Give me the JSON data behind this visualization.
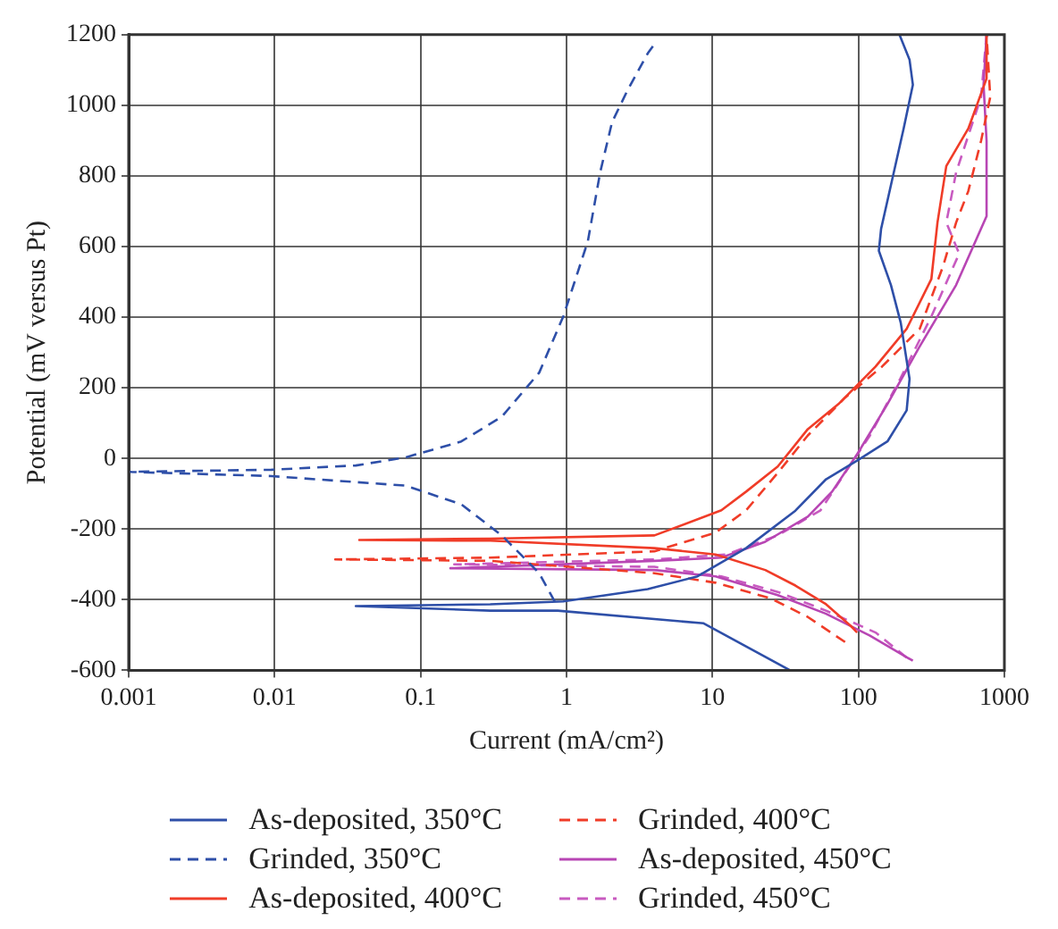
{
  "chart_data": {
    "type": "line",
    "xlabel": "Current (mA/cm²)",
    "ylabel": "Potential (mV versus Pt)",
    "log": "x",
    "xlim": [
      0.001,
      1000
    ],
    "xticks": [
      0.001,
      0.01,
      0.1,
      1,
      10,
      100,
      1000
    ],
    "ylim": [
      -600,
      1200
    ],
    "yticks": [
      -600,
      -400,
      -200,
      0,
      200,
      400,
      600,
      800,
      1000,
      1200
    ],
    "grid": true,
    "legend": "bottom",
    "marker": "none",
    "series": [
      {
        "name": "As-deposited, 350°C",
        "color": "#2e4fa8",
        "line_style": "solid",
        "x": [
          34,
          8.7,
          0.87,
          0.3,
          0.036,
          0.3,
          0.95,
          3.6,
          7.9,
          17,
          37,
          60,
          98,
          158,
          214,
          224,
          195,
          167,
          138,
          143,
          167,
          204,
          236,
          224,
          191
        ],
        "values": [
          -600,
          -467,
          -431,
          -431,
          -418,
          -413,
          -405,
          -370,
          -334,
          -254,
          -148,
          -59,
          -6,
          48,
          136,
          225,
          384,
          491,
          588,
          650,
          774,
          934,
          1058,
          1129,
          1200
        ]
      },
      {
        "name": "Grinded, 350°C",
        "color": "#2e4fa8",
        "line_style": "dashed",
        "x": [
          0.83,
          0.65,
          0.36,
          0.19,
          0.079,
          0.0095,
          0.001,
          0.0095,
          0.036,
          0.079,
          0.19,
          0.36,
          0.65,
          0.95,
          1.4,
          1.7,
          2.05,
          2.6,
          3.6,
          4.0
        ],
        "values": [
          -405,
          -325,
          -218,
          -130,
          -77,
          -50,
          -38,
          -32,
          -20,
          3,
          48,
          118,
          243,
          402,
          615,
          810,
          952,
          1040,
          1147,
          1173
        ]
      },
      {
        "name": "As-deposited, 400°C",
        "color": "#f03c28",
        "line_style": "solid",
        "x": [
          98,
          89,
          60,
          37,
          23,
          10.5,
          4.0,
          0.3,
          0.038,
          0.3,
          4.0,
          11.5,
          17,
          28,
          45,
          73,
          131,
          214,
          316,
          348,
          400,
          566,
          755,
          755
        ],
        "values": [
          -493,
          -475,
          -413,
          -360,
          -316,
          -272,
          -254,
          -233,
          -231,
          -227,
          -218,
          -147,
          -94,
          -23,
          83,
          154,
          260,
          367,
          508,
          668,
          828,
          934,
          1076,
          1200
        ]
      },
      {
        "name": "Grinded, 400°C",
        "color": "#f03c28",
        "line_style": "dashed",
        "x": [
          81,
          45,
          25,
          10.5,
          4.0,
          0.3,
          0.026,
          0.3,
          4.0,
          10.5,
          17,
          28,
          45,
          81,
          145,
          263,
          380,
          467,
          566,
          692,
          800,
          755
        ],
        "values": [
          -520,
          -449,
          -396,
          -352,
          -325,
          -290,
          -286,
          -281,
          -263,
          -210,
          -147,
          -41,
          65,
          172,
          260,
          367,
          544,
          668,
          757,
          899,
          1023,
          1200
        ]
      },
      {
        "name": "As-deposited, 450°C",
        "color": "#b846b4",
        "line_style": "solid",
        "x": [
          236,
          120,
          60,
          28,
          10.5,
          4.0,
          0.16,
          4.0,
          11.5,
          23,
          45,
          66,
          98,
          158,
          260,
          467,
          755,
          755,
          720,
          755
        ],
        "values": [
          -573,
          -502,
          -440,
          -387,
          -334,
          -316,
          -311,
          -290,
          -281,
          -236,
          -165,
          -94,
          12,
          154,
          314,
          491,
          686,
          899,
          1058,
          1200
        ]
      },
      {
        "name": "Grinded, 450°C",
        "color": "#c85ac0",
        "line_style": "dashed",
        "x": [
          214,
          131,
          60,
          28,
          11.5,
          4.0,
          0.17,
          4.0,
          12.5,
          28,
          55,
          81,
          120,
          193,
          316,
          490,
          400,
          467,
          692,
          755
        ],
        "values": [
          -564,
          -493,
          -431,
          -378,
          -334,
          -307,
          -300,
          -286,
          -272,
          -218,
          -147,
          -41,
          65,
          225,
          402,
          580,
          668,
          810,
          1023,
          1200
        ]
      }
    ]
  }
}
